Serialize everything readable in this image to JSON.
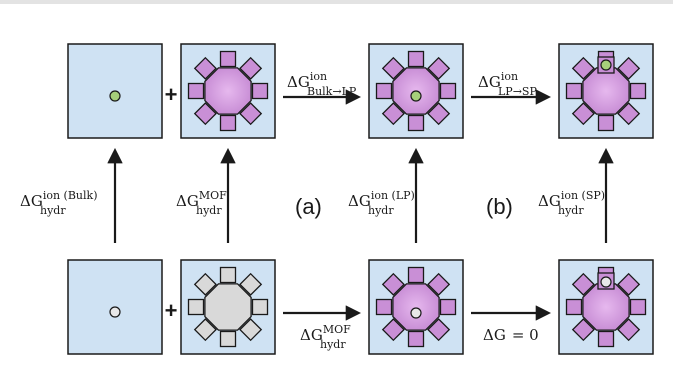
{
  "top_bar_color": "#e3e3e3",
  "colors": {
    "box_fill": "#cfe2f3",
    "box_stroke": "#1a1a1a",
    "mof_fill": "#c98fd6",
    "mof_dry_fill": "#d9d9d9",
    "ion_hydrated": "#a6cf7a",
    "ion_gas": "#e8e8e8",
    "arrow": "#1a1a1a"
  },
  "operators": {
    "plus_top": "+",
    "plus_bottom": "+"
  },
  "labels": {
    "delta_g": "ΔG",
    "bulk_lp": {
      "sup": "ion",
      "sub": "Bulk→LP"
    },
    "lp_sp": {
      "sup": "ion",
      "sub": "LP→SP"
    },
    "hydr_bulk": {
      "sup": "ion (Bulk)",
      "sub": "hydr"
    },
    "hydr_mof_left": {
      "sup": "MOF",
      "sub": "hydr"
    },
    "hydr_lp": {
      "sup": "ion (LP)",
      "sub": "hydr"
    },
    "hydr_sp": {
      "sup": "ion (SP)",
      "sub": "hydr"
    },
    "hydr_mof_bottom": {
      "sup": "MOF",
      "sub": "hydr"
    },
    "zero": "= 0"
  },
  "panel_labels": {
    "a": "(a)",
    "b": "(b)"
  }
}
